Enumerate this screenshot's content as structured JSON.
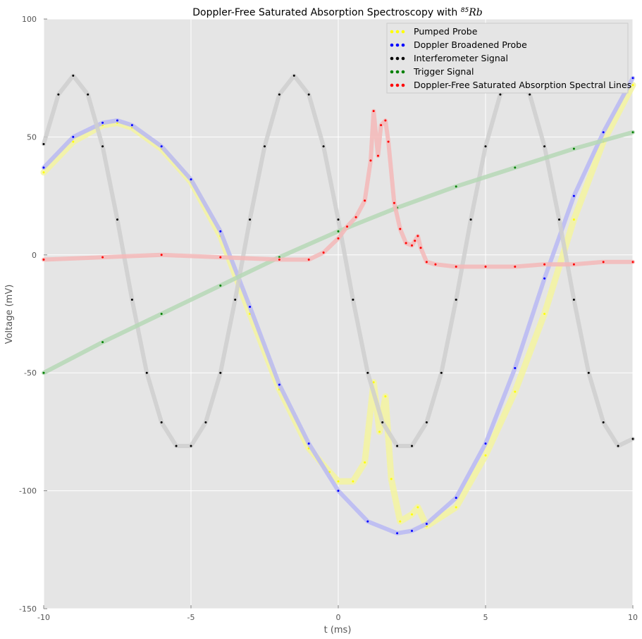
{
  "chart_data": {
    "type": "scatter",
    "title": "Doppler-Free Saturated Absorption Spectroscopy with ",
    "title_math": "85",
    "title_math_tail": "Rb",
    "xlabel": "t (ms)",
    "ylabel": "Voltage (mV)",
    "xlim": [
      -10,
      10
    ],
    "ylim": [
      -150,
      100
    ],
    "xticks": [
      -10,
      -5,
      0,
      5,
      10
    ],
    "yticks": [
      -150,
      -100,
      -50,
      0,
      50,
      100
    ],
    "grid": true,
    "legend_position": "upper-right",
    "background_color": "#e5e5e5",
    "series": [
      {
        "name": "Pumped Probe",
        "color": "#ffff00",
        "x": [
          -10,
          -9,
          -8,
          -7.5,
          -7,
          -6,
          -5,
          -4,
          -3,
          -2,
          -1,
          -0.3,
          0,
          0.5,
          0.9,
          1.2,
          1.4,
          1.6,
          1.8,
          2.1,
          2.5,
          2.7,
          3,
          4,
          5,
          6,
          7,
          8,
          9,
          10
        ],
        "y": [
          35,
          48,
          55,
          56,
          54,
          45,
          31,
          8,
          -25,
          -57,
          -82,
          -92,
          -96,
          -96,
          -88,
          -54,
          -75,
          -60,
          -95,
          -113,
          -110,
          -107,
          -115,
          -107,
          -85,
          -58,
          -25,
          15,
          48,
          72
        ]
      },
      {
        "name": "Doppler Broadened Probe",
        "color": "#0000ff",
        "x": [
          -10,
          -9,
          -8,
          -7.5,
          -7,
          -6,
          -5,
          -4,
          -3,
          -2,
          -1,
          0,
          1,
          2,
          2.5,
          3,
          4,
          5,
          6,
          7,
          8,
          9,
          10
        ],
        "y": [
          37,
          50,
          56,
          57,
          55,
          46,
          32,
          10,
          -22,
          -55,
          -80,
          -100,
          -113,
          -118,
          -117,
          -114,
          -103,
          -80,
          -48,
          -10,
          25,
          52,
          75
        ]
      },
      {
        "name": "Interferometer Signal",
        "color": "#000000",
        "x": [
          -10,
          -9.5,
          -9,
          -8.5,
          -8,
          -7.5,
          -7,
          -6.5,
          -6,
          -5.5,
          -5,
          -4.5,
          -4,
          -3.5,
          -3,
          -2.5,
          -2,
          -1.5,
          -1,
          -0.5,
          0,
          0.5,
          1,
          1.5,
          2,
          2.5,
          3,
          3.5,
          4,
          4.5,
          5,
          5.5,
          6,
          6.5,
          7,
          7.5,
          8,
          8.5,
          9,
          9.5,
          10
        ],
        "y": [
          47,
          68,
          76,
          68,
          46,
          15,
          -19,
          -50,
          -71,
          -81,
          -81,
          -71,
          -50,
          -19,
          15,
          46,
          68,
          76,
          68,
          46,
          15,
          -19,
          -50,
          -71,
          -81,
          -81,
          -71,
          -50,
          -19,
          15,
          46,
          68,
          76,
          68,
          46,
          15,
          -19,
          -50,
          -71,
          -81,
          -78
        ]
      },
      {
        "name": "Trigger Signal",
        "color": "#008000",
        "x": [
          -10,
          -8,
          -6,
          -4,
          -2,
          0,
          2,
          4,
          6,
          8,
          10
        ],
        "y": [
          -50,
          -37,
          -25,
          -13,
          -1,
          10,
          20,
          29,
          37,
          45,
          52
        ]
      },
      {
        "name": "Doppler-Free Saturated Absorption Spectral Lines",
        "color": "#ff0000",
        "x": [
          -10,
          -8,
          -6,
          -4,
          -2,
          -1,
          -0.5,
          0,
          0.3,
          0.6,
          0.9,
          1.1,
          1.2,
          1.35,
          1.45,
          1.6,
          1.7,
          1.9,
          2.1,
          2.3,
          2.5,
          2.6,
          2.7,
          2.8,
          3,
          3.3,
          4,
          5,
          6,
          7,
          8,
          9,
          10
        ],
        "y": [
          -2,
          -1,
          0,
          -1,
          -2,
          -2,
          1,
          7,
          12,
          16,
          23,
          40,
          61,
          42,
          55,
          57,
          48,
          22,
          11,
          5,
          4,
          6,
          8,
          3,
          -3,
          -4,
          -5,
          -5,
          -5,
          -4,
          -4,
          -3,
          -3
        ]
      }
    ]
  }
}
